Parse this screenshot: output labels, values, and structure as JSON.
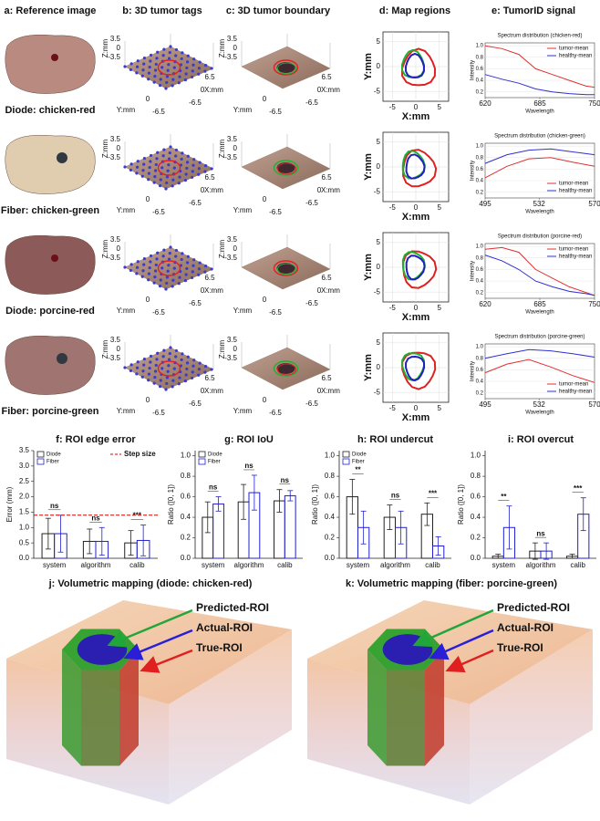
{
  "columns": [
    "a: Reference image",
    "b: 3D tumor tags",
    "c: 3D tumor boundary",
    "d: Map regions",
    "e: TumorID signal"
  ],
  "rows": [
    "Diode: chicken-red",
    "Fiber: chicken-green",
    "Diode: porcine-red",
    "Fiber: porcine-green"
  ],
  "plot3d": {
    "zlabel": "Z:mm",
    "ylabel": "Y:mm",
    "xlabel": "X:mm",
    "zticks": [
      3.5,
      0,
      -3.5
    ],
    "yticks": [
      0,
      -6.5
    ],
    "xticks": [
      6.5,
      0,
      -6.5
    ]
  },
  "map": {
    "xlabel": "X:mm",
    "ylabel": "Y:mm",
    "xticks": [
      -5,
      0,
      5
    ],
    "yticks": [
      5,
      0,
      -5
    ],
    "xlim": [
      -7,
      7
    ],
    "ylim": [
      -7,
      7
    ]
  },
  "chart_data": [
    {
      "type": "line",
      "title": "Spectrum distribution (chicken-red)",
      "xlabel": "Wavelength",
      "ylabel": "Intensity",
      "x": [
        620,
        640,
        660,
        680,
        700,
        720,
        740,
        750
      ],
      "xlim": [
        620,
        750
      ],
      "xticks": [
        620,
        685,
        750
      ],
      "ylim": [
        0.1,
        1.05
      ],
      "yticks": [
        0.2,
        0.4,
        0.6,
        0.8,
        {
          "value": 1,
          "label": "1.0"
        }
      ],
      "grid": true,
      "legend": "upper right",
      "series": [
        {
          "name": "tumor-mean",
          "color": "#e03030",
          "values": [
            1.0,
            0.95,
            0.85,
            0.6,
            0.5,
            0.4,
            0.3,
            0.28
          ]
        },
        {
          "name": "healthy-mean",
          "color": "#3030d0",
          "values": [
            0.5,
            0.42,
            0.35,
            0.25,
            0.2,
            0.17,
            0.15,
            0.15
          ]
        }
      ]
    },
    {
      "type": "line",
      "title": "Spectrum distribution (chicken-green)",
      "xlabel": "Wavelength",
      "ylabel": "Intensity",
      "x": [
        495,
        510,
        525,
        540,
        555,
        570
      ],
      "xlim": [
        495,
        570
      ],
      "xticks": [
        495,
        532,
        570
      ],
      "ylim": [
        0.1,
        1.05
      ],
      "yticks": [
        0.2,
        0.4,
        0.6,
        0.8,
        {
          "value": 1,
          "label": "1.0"
        }
      ],
      "grid": true,
      "legend": "lower right",
      "series": [
        {
          "name": "tumor-mean",
          "color": "#e03030",
          "values": [
            0.45,
            0.65,
            0.78,
            0.8,
            0.72,
            0.65
          ]
        },
        {
          "name": "healthy-mean",
          "color": "#3030d0",
          "values": [
            0.7,
            0.85,
            0.93,
            0.95,
            0.9,
            0.85
          ]
        }
      ]
    },
    {
      "type": "line",
      "title": "Spectrum distribution (porcine-red)",
      "xlabel": "Wavelength",
      "ylabel": "Intensity",
      "x": [
        620,
        640,
        660,
        680,
        700,
        720,
        740,
        750
      ],
      "xlim": [
        620,
        750
      ],
      "xticks": [
        620,
        685,
        750
      ],
      "ylim": [
        0.1,
        1.05
      ],
      "yticks": [
        0.2,
        0.4,
        0.6,
        0.8,
        {
          "value": 1,
          "label": "1.0"
        }
      ],
      "grid": true,
      "legend": "upper right",
      "series": [
        {
          "name": "tumor-mean",
          "color": "#e03030",
          "values": [
            0.95,
            0.98,
            0.9,
            0.6,
            0.45,
            0.3,
            0.2,
            0.15
          ]
        },
        {
          "name": "healthy-mean",
          "color": "#3030d0",
          "values": [
            0.85,
            0.75,
            0.6,
            0.4,
            0.3,
            0.22,
            0.18,
            0.15
          ]
        }
      ]
    },
    {
      "type": "line",
      "title": "Spectrum distribution (porcine-green)",
      "xlabel": "Wavelength",
      "ylabel": "Intensity",
      "x": [
        495,
        510,
        525,
        540,
        555,
        570
      ],
      "xlim": [
        495,
        570
      ],
      "xticks": [
        495,
        532,
        570
      ],
      "ylim": [
        0.1,
        1.05
      ],
      "yticks": [
        0.2,
        0.4,
        0.6,
        0.8,
        {
          "value": 1,
          "label": "1.0"
        }
      ],
      "grid": true,
      "legend": "lower right",
      "series": [
        {
          "name": "tumor-mean",
          "color": "#e03030",
          "values": [
            0.55,
            0.7,
            0.78,
            0.65,
            0.5,
            0.38
          ]
        },
        {
          "name": "healthy-mean",
          "color": "#3030d0",
          "values": [
            0.8,
            0.88,
            0.95,
            0.93,
            0.88,
            0.82
          ]
        }
      ]
    },
    {
      "type": "bar",
      "title": "f: ROI edge error",
      "ylabel": "Error (mm)",
      "categories": [
        "system",
        "algorithm",
        "calib"
      ],
      "series": [
        {
          "name": "Diode",
          "color": "#222222",
          "values": [
            0.8,
            0.55,
            0.5
          ],
          "errors": [
            0.5,
            0.4,
            0.4
          ]
        },
        {
          "name": "Fiber",
          "color": "#2020cc",
          "values": [
            0.8,
            0.55,
            0.58
          ],
          "errors": [
            0.6,
            0.45,
            0.5
          ]
        }
      ],
      "significance": [
        "ns",
        "ns",
        "***"
      ],
      "ylim": [
        0,
        3.5
      ],
      "yticks": [
        {
          "value": 0,
          "label": "0.0"
        },
        0.5,
        {
          "value": 1,
          "label": "1.0"
        },
        1.5,
        {
          "value": 2,
          "label": "2.0"
        },
        2.5,
        {
          "value": 3,
          "label": "3.0"
        },
        3.5
      ],
      "reference_line": {
        "value": 1.4,
        "label": "Step size",
        "color": "#dd0000"
      },
      "legend": "upper left"
    },
    {
      "type": "bar",
      "title": "g: ROI IoU",
      "ylabel": "Ratio ([0, 1])",
      "categories": [
        "system",
        "algorithm",
        "calib"
      ],
      "series": [
        {
          "name": "Diode",
          "color": "#222222",
          "values": [
            0.4,
            0.55,
            0.56
          ],
          "errors": [
            0.15,
            0.17,
            0.11
          ]
        },
        {
          "name": "Fiber",
          "color": "#2020cc",
          "values": [
            0.53,
            0.64,
            0.61
          ],
          "errors": [
            0.07,
            0.17,
            0.05
          ]
        }
      ],
      "significance": [
        "ns",
        "ns",
        "ns"
      ],
      "ylim": [
        0,
        1.05
      ],
      "yticks": [
        {
          "value": 0,
          "label": "0.0"
        },
        0.2,
        0.4,
        0.6,
        0.8,
        {
          "value": 1,
          "label": "1.0"
        }
      ],
      "legend": "upper left"
    },
    {
      "type": "bar",
      "title": "h: ROI undercut",
      "ylabel": "Ratio ([0, 1])",
      "categories": [
        "system",
        "algorithm",
        "calib"
      ],
      "series": [
        {
          "name": "Diode",
          "color": "#222222",
          "values": [
            0.6,
            0.4,
            0.43
          ],
          "errors": [
            0.17,
            0.12,
            0.11
          ]
        },
        {
          "name": "Fiber",
          "color": "#2020cc",
          "values": [
            0.3,
            0.3,
            0.12
          ],
          "errors": [
            0.16,
            0.16,
            0.09
          ]
        }
      ],
      "significance": [
        "**",
        "ns",
        "***"
      ],
      "ylim": [
        0,
        1.05
      ],
      "yticks": [
        {
          "value": 0,
          "label": "0.0"
        },
        0.2,
        0.4,
        0.6,
        0.8,
        {
          "value": 1,
          "label": "1.0"
        }
      ],
      "legend": "upper left"
    },
    {
      "type": "bar",
      "title": "i: ROI overcut",
      "ylabel": "Ratio ([0, 1])",
      "categories": [
        "system",
        "algorithm",
        "calib"
      ],
      "series": [
        {
          "name": "Diode",
          "color": "#222222",
          "values": [
            0.02,
            0.07,
            0.02
          ],
          "errors": [
            0.02,
            0.08,
            0.02
          ]
        },
        {
          "name": "Fiber",
          "color": "#2020cc",
          "values": [
            0.3,
            0.07,
            0.43
          ],
          "errors": [
            0.21,
            0.08,
            0.16
          ]
        }
      ],
      "significance": [
        "**",
        "ns",
        "***"
      ],
      "ylim": [
        0,
        1.05
      ],
      "yticks": [
        {
          "value": 0,
          "label": "0.0"
        },
        0.2,
        0.4,
        0.6,
        0.8,
        {
          "value": 1,
          "label": "1.0"
        }
      ]
    }
  ],
  "volumes": [
    {
      "title": "j: Volumetric mapping (diode: chicken-red)",
      "labels": [
        {
          "text": "Predicted-ROI",
          "color": "#22a63a"
        },
        {
          "text": "Actual-ROI",
          "color": "#2a1fd6"
        },
        {
          "text": "True-ROI",
          "color": "#e02020"
        }
      ]
    },
    {
      "title": "k: Volumetric mapping (fiber: porcine-green)",
      "labels": [
        {
          "text": "Predicted-ROI",
          "color": "#22a63a"
        },
        {
          "text": "Actual-ROI",
          "color": "#2a1fd6"
        },
        {
          "text": "True-ROI",
          "color": "#e02020"
        }
      ]
    }
  ]
}
